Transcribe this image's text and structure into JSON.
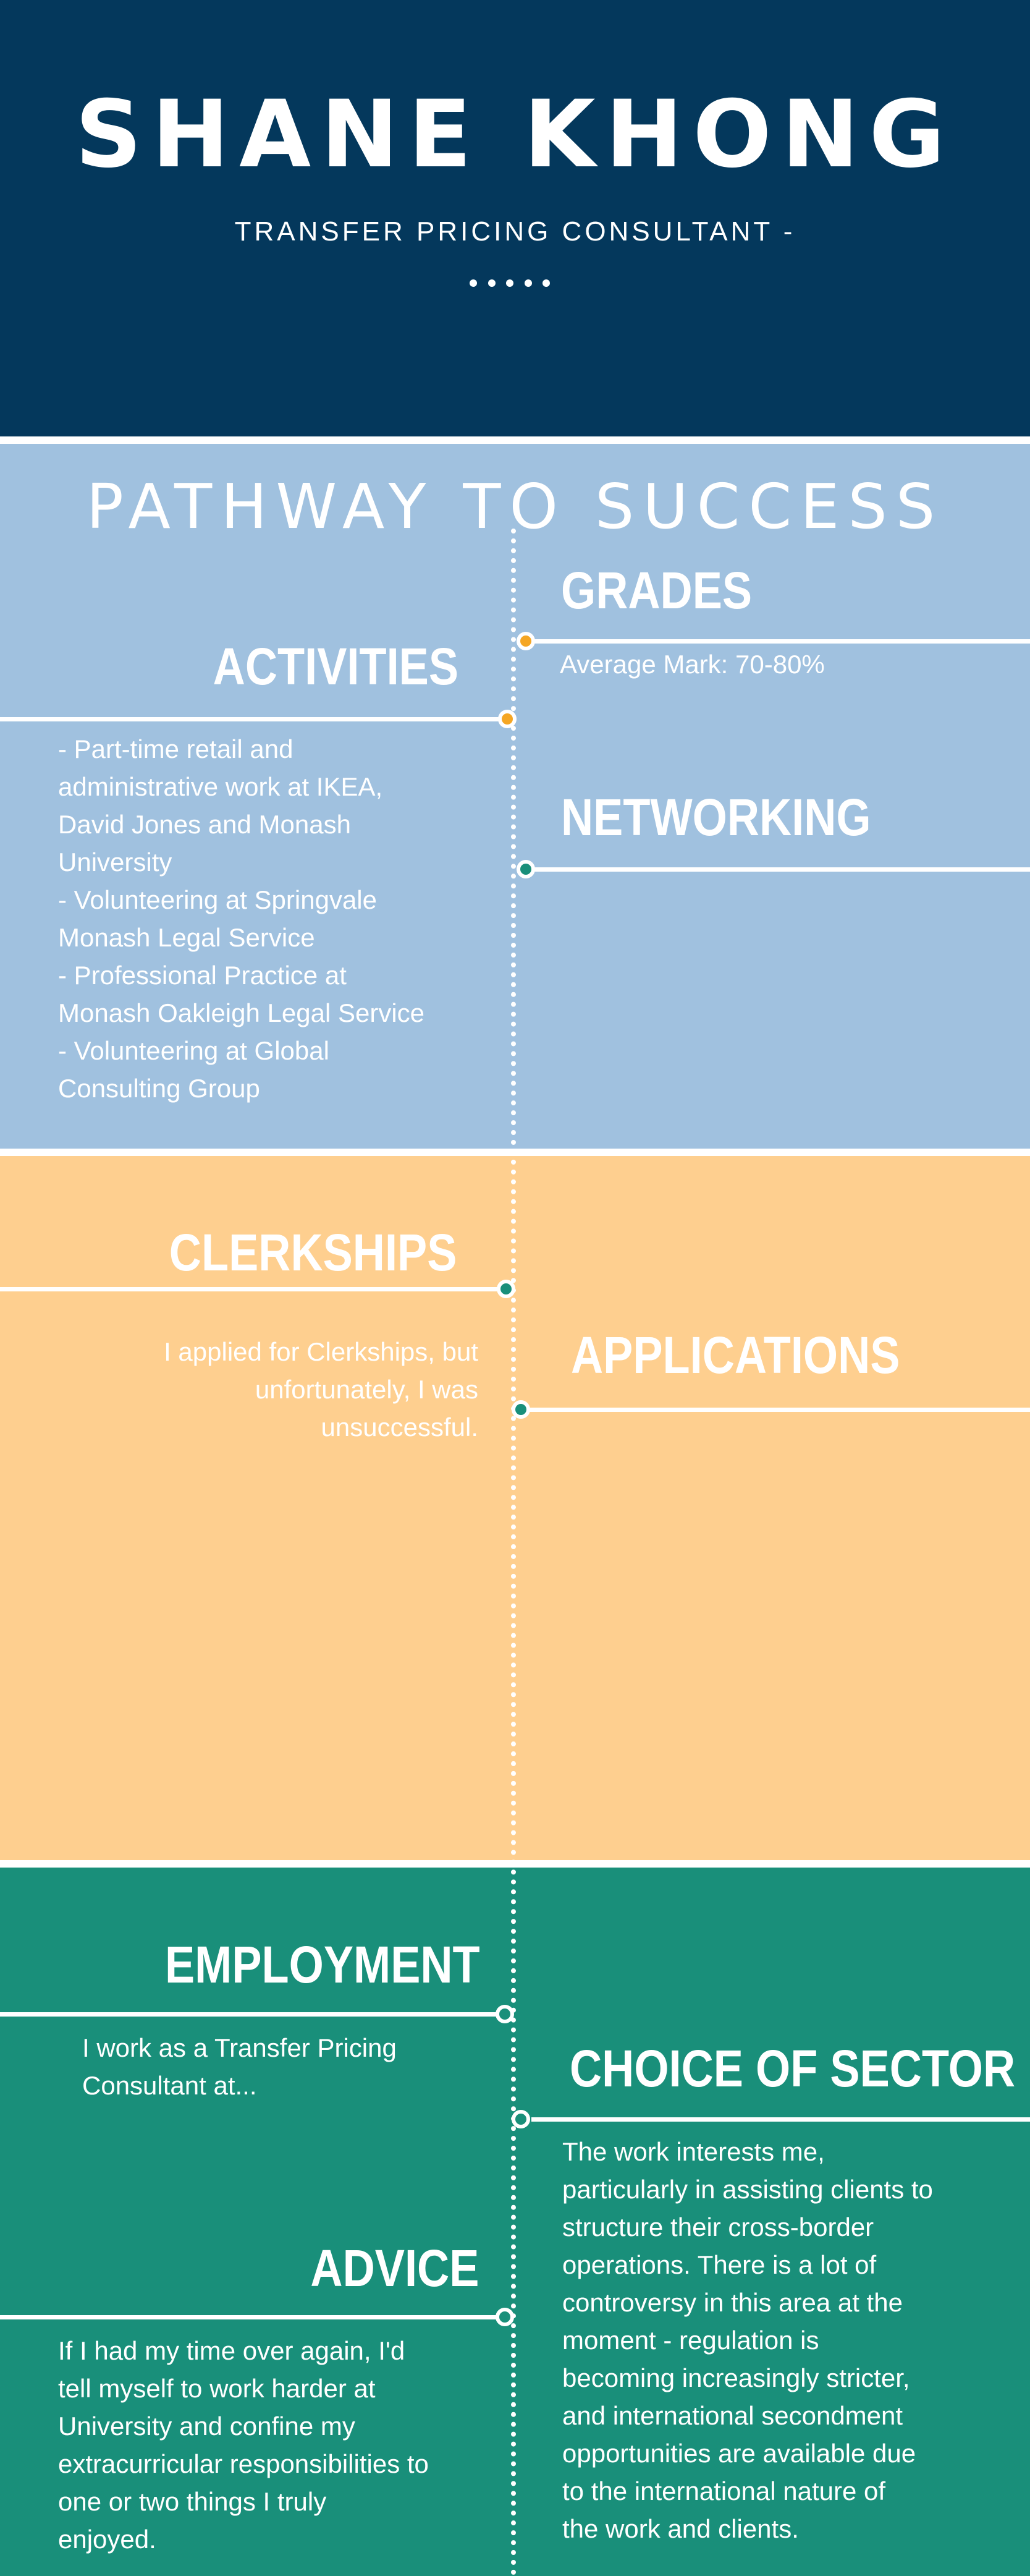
{
  "header": {
    "name": "SHANE KHONG",
    "subtitle": "TRANSFER PRICING CONSULTANT -"
  },
  "section_title": "PATHWAY TO SUCCESS",
  "colors": {
    "header_bg": "#04385c",
    "blue_bg": "#a0c1df",
    "peach_bg": "#fecf8f",
    "teal_bg": "#198f7a",
    "node_orange": "#f5a623",
    "node_teal": "#198f7a"
  },
  "grades": {
    "heading": "GRADES",
    "text": "Average Mark: 70-80%"
  },
  "activities": {
    "heading": "ACTIVITIES",
    "text": "- Part-time retail and\nadministrative work at IKEA,\nDavid Jones and Monash\nUniversity\n- Volunteering at Springvale\nMonash Legal Service\n- Professional Practice at\nMonash Oakleigh Legal Service\n- Volunteering at Global\nConsulting Group"
  },
  "networking": {
    "heading": "NETWORKING"
  },
  "clerkships": {
    "heading": "CLERKSHIPS",
    "text": "I applied for Clerkships, but\nunfortunately, I was\nunsuccessful."
  },
  "applications": {
    "heading": "APPLICATIONS"
  },
  "employment": {
    "heading": "EMPLOYMENT",
    "text": "I work as a Transfer Pricing\nConsultant at..."
  },
  "choice_of_sector": {
    "heading": "CHOICE OF SECTOR",
    "text": "The work interests me,\nparticularly in assisting clients to\nstructure their cross-border\noperations. There is a lot of\ncontroversy in this area at the\nmoment - regulation is\nbecoming increasingly stricter,\nand international secondment\nopportunities are available due\nto the international nature of\nthe work and clients."
  },
  "advice": {
    "heading": "ADVICE",
    "text": "If I had my time over again, I'd\ntell myself to work harder at\nUniversity and confine my\nextracurricular responsibilities to\none or two things I truly\nenjoyed."
  }
}
